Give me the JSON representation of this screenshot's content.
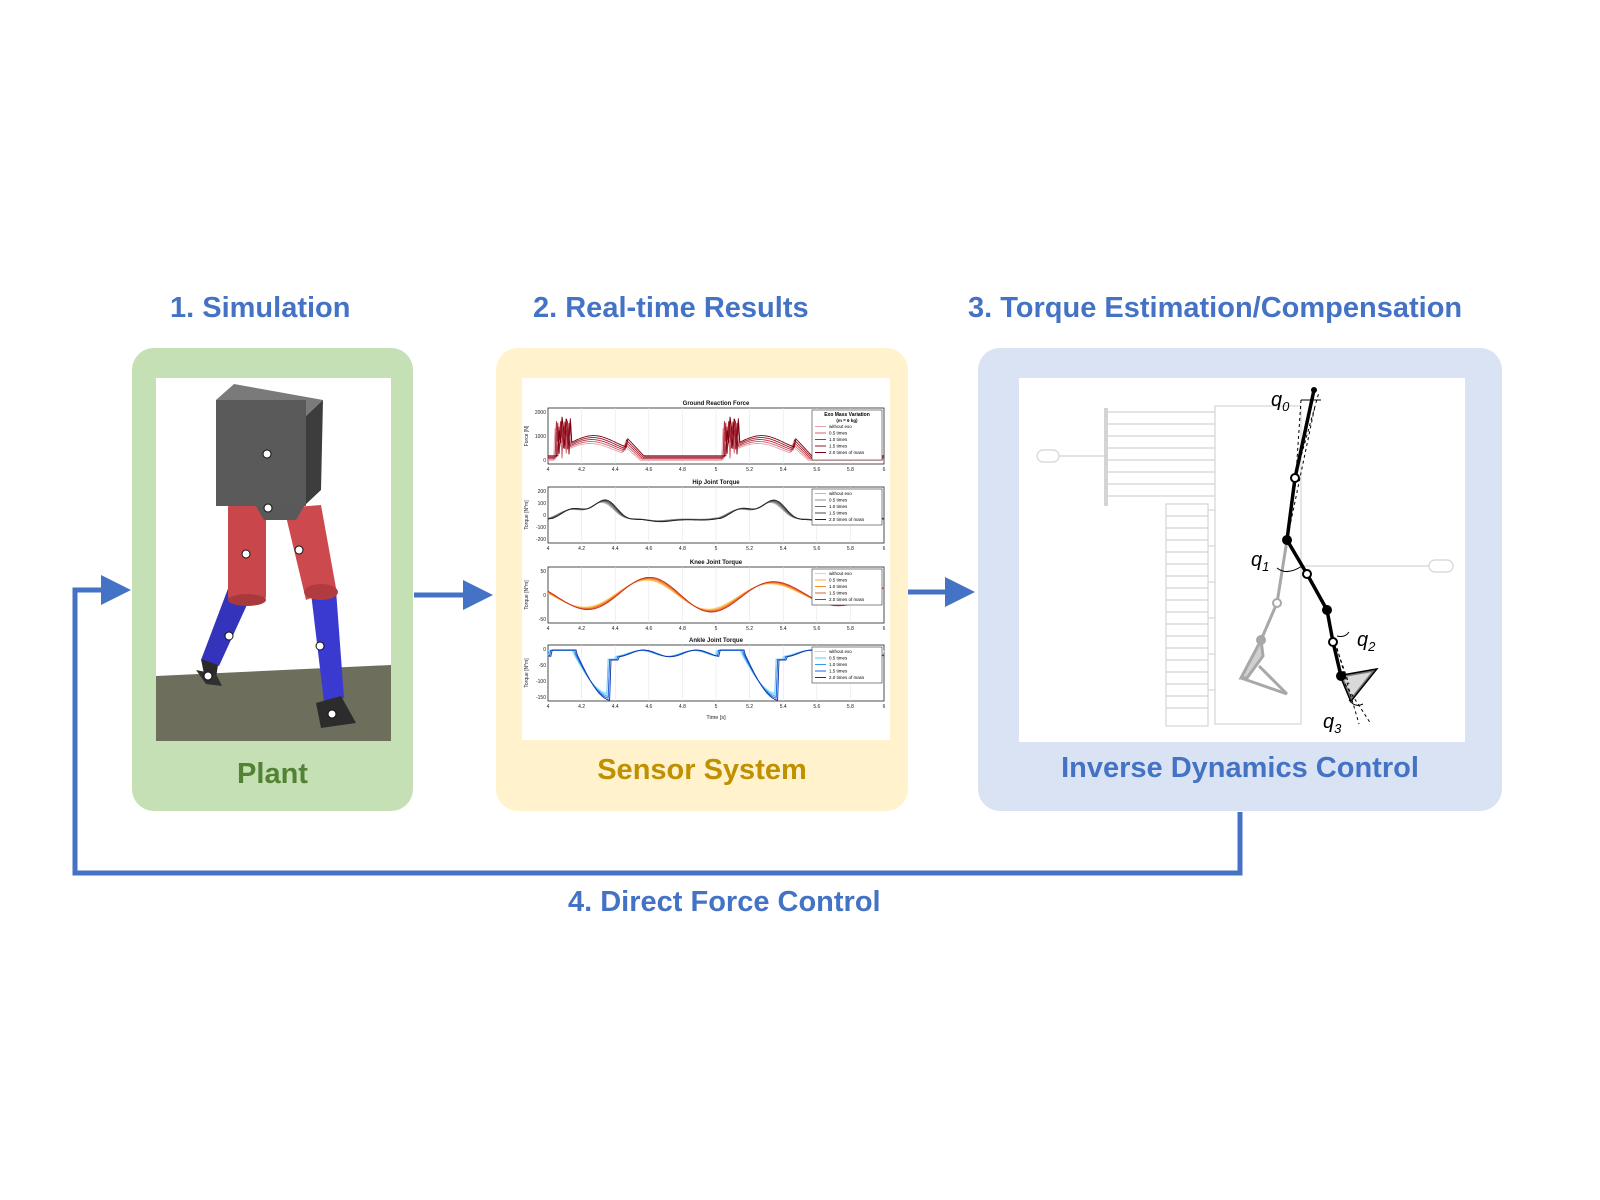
{
  "stages": [
    {
      "title": "1. Simulation",
      "label": "Plant"
    },
    {
      "title": "2. Real-time Results",
      "label": "Sensor System"
    },
    {
      "title": "3. Torque Estimation/Compensation",
      "label": "Inverse Dynamics Control"
    }
  ],
  "feedback_label": "4. Direct Force Control",
  "colors": {
    "accent": "#4472c4",
    "plant_bg": "#c5e0b4",
    "plant_text": "#548235",
    "sensor_bg": "#fff2cc",
    "sensor_text": "#bf9000",
    "control_bg": "#dae3f3",
    "control_text": "#4472c4"
  },
  "sensor_plots": [
    {
      "title": "Ground Reaction Force",
      "ylabel": "Force [N]",
      "yticks": [
        "2000",
        "1000",
        "0"
      ],
      "legend_title": "Exo Mass Variation",
      "legend_subtitle": "(m  = 6 kg)",
      "legend": [
        "without exo",
        "0.5 times",
        "1.0 times",
        "1.5 times",
        "2.0 times of mass"
      ]
    },
    {
      "title": "Hip Joint Torque",
      "ylabel": "Torque [N*m]",
      "yticks": [
        "200",
        "100",
        "0",
        "-100",
        "-200"
      ],
      "legend": [
        "without exo",
        "0.5 times",
        "1.0 times",
        "1.5 times",
        "2.0 times of mass"
      ]
    },
    {
      "title": "Knee Joint Torque",
      "ylabel": "Torque [N*m]",
      "yticks": [
        "50",
        "0",
        "-50"
      ],
      "legend": [
        "without exo",
        "0.5 times",
        "1.0 times",
        "1.5 times",
        "2.0 times of mass"
      ]
    },
    {
      "title": "Ankle Joint Torque",
      "ylabel": "Torque [N*m]",
      "yticks": [
        "0",
        "-50",
        "-100",
        "-150"
      ],
      "legend": [
        "without exo",
        "0.5 times",
        "1.0 times",
        "1.5 times",
        "2.0 times of mass"
      ]
    }
  ],
  "xticks": [
    "4",
    "4.2",
    "4.4",
    "4.6",
    "4.8",
    "5",
    "5.2",
    "5.4",
    "5.6",
    "5.8",
    "6"
  ],
  "xlabel": "Time [s]",
  "joint_labels": [
    "q",
    "q",
    "q",
    "q"
  ],
  "joint_subscripts": [
    "0",
    "1",
    "2",
    "3"
  ]
}
